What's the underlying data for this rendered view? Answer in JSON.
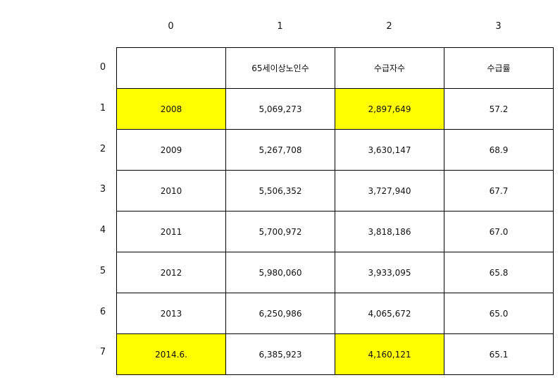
{
  "column_headers": [
    "0",
    "1",
    "2",
    "3"
  ],
  "row_headers": [
    "0",
    "1",
    "2",
    "3",
    "4",
    "5",
    "6",
    "7"
  ],
  "highlight_color": "#ffff00",
  "table": {
    "rows": [
      {
        "cells": [
          "",
          "65세이상노인수",
          "수급자수",
          "수급률"
        ],
        "highlight": [
          false,
          false,
          false,
          false
        ]
      },
      {
        "cells": [
          "2008",
          "5,069,273",
          "2,897,649",
          "57.2"
        ],
        "highlight": [
          true,
          false,
          true,
          false
        ]
      },
      {
        "cells": [
          "2009",
          "5,267,708",
          "3,630,147",
          "68.9"
        ],
        "highlight": [
          false,
          false,
          false,
          false
        ]
      },
      {
        "cells": [
          "2010",
          "5,506,352",
          "3,727,940",
          "67.7"
        ],
        "highlight": [
          false,
          false,
          false,
          false
        ]
      },
      {
        "cells": [
          "2011",
          "5,700,972",
          "3,818,186",
          "67.0"
        ],
        "highlight": [
          false,
          false,
          false,
          false
        ]
      },
      {
        "cells": [
          "2012",
          "5,980,060",
          "3,933,095",
          "65.8"
        ],
        "highlight": [
          false,
          false,
          false,
          false
        ]
      },
      {
        "cells": [
          "2013",
          "6,250,986",
          "4,065,672",
          "65.0"
        ],
        "highlight": [
          false,
          false,
          false,
          false
        ]
      },
      {
        "cells": [
          "2014.6.",
          "6,385,923",
          "4,160,121",
          "65.1"
        ],
        "highlight": [
          true,
          false,
          true,
          false
        ]
      }
    ]
  }
}
